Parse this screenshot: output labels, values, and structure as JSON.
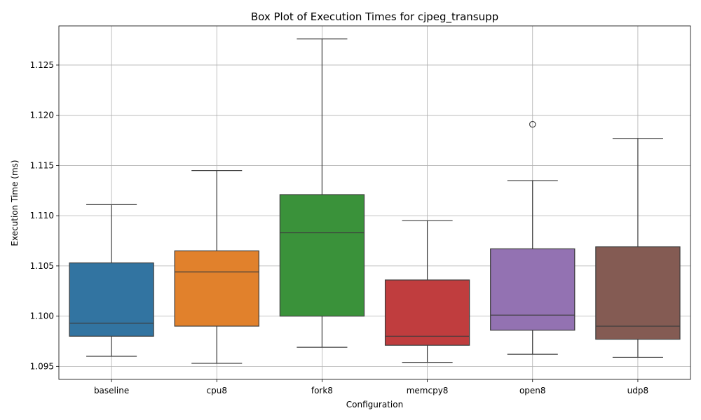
{
  "chart_data": {
    "type": "box",
    "title": "Box Plot of Execution Times for cjpeg_transupp",
    "xlabel": "Configuration",
    "ylabel": "Execution Time (ms)",
    "ylim": [
      1.0937,
      1.1289
    ],
    "yticks": [
      "1.095",
      "1.100",
      "1.105",
      "1.110",
      "1.115",
      "1.120",
      "1.125"
    ],
    "ytick_values": [
      1.095,
      1.1,
      1.105,
      1.11,
      1.115,
      1.12,
      1.125
    ],
    "grid": true,
    "series": [
      {
        "category": "baseline",
        "color": "#3274a1",
        "whisker_low": 1.096,
        "q1": 1.098,
        "median": 1.0993,
        "q3": 1.1053,
        "whisker_high": 1.1111,
        "outliers": []
      },
      {
        "category": "cpu8",
        "color": "#e1812c",
        "whisker_low": 1.0953,
        "q1": 1.099,
        "median": 1.1044,
        "q3": 1.1065,
        "whisker_high": 1.1145,
        "outliers": []
      },
      {
        "category": "fork8",
        "color": "#3a923a",
        "whisker_low": 1.0969,
        "q1": 1.1,
        "median": 1.1083,
        "q3": 1.1121,
        "whisker_high": 1.1276,
        "outliers": []
      },
      {
        "category": "memcpy8",
        "color": "#c03d3e",
        "whisker_low": 1.0954,
        "q1": 1.0971,
        "median": 1.098,
        "q3": 1.1036,
        "whisker_high": 1.1095,
        "outliers": []
      },
      {
        "category": "open8",
        "color": "#9372b2",
        "whisker_low": 1.0962,
        "q1": 1.0986,
        "median": 1.1001,
        "q3": 1.1067,
        "whisker_high": 1.1135,
        "outliers": [
          1.1191
        ]
      },
      {
        "category": "udp8",
        "color": "#845b53",
        "whisker_low": 1.0959,
        "q1": 1.0977,
        "median": 1.099,
        "q3": 1.1069,
        "whisker_high": 1.1177,
        "outliers": []
      }
    ]
  }
}
